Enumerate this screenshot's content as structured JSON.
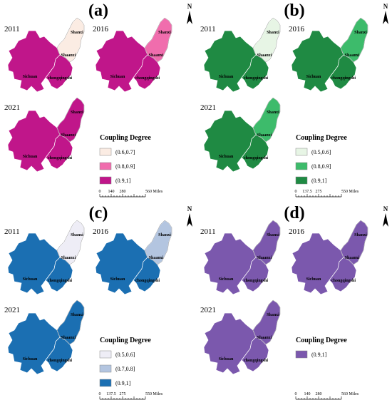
{
  "panels": [
    {
      "letter": "(a)",
      "maps": [
        {
          "year": "2011",
          "fills": [
            "#c0168a",
            "#c0168a",
            "#fbece3"
          ]
        },
        {
          "year": "2016",
          "fills": [
            "#c0168a",
            "#c0168a",
            "#f06dad"
          ]
        },
        {
          "year": "2021",
          "fills": [
            "#c0168a",
            "#c0168a",
            "#c0168a"
          ]
        }
      ],
      "legend": {
        "title": "Coupling Degree",
        "items": [
          {
            "label": "(0.6,0.7]",
            "color": "#fbece3"
          },
          {
            "label": "(0.8,0.9]",
            "color": "#f06dad"
          },
          {
            "label": "(0.9,1]",
            "color": "#c0168a"
          }
        ]
      },
      "scale": {
        "ticks": [
          "0",
          "140",
          "280",
          "560"
        ],
        "unit": "Miles"
      }
    },
    {
      "letter": "(b)",
      "maps": [
        {
          "year": "2011",
          "fills": [
            "#1f8a43",
            "#1f8a43",
            "#e7f5e5"
          ]
        },
        {
          "year": "2016",
          "fills": [
            "#1f8a43",
            "#1f8a43",
            "#3dbb6b"
          ]
        },
        {
          "year": "2021",
          "fills": [
            "#1f8a43",
            "#1f8a43",
            "#3dbb6b"
          ]
        }
      ],
      "legend": {
        "title": "Coupling Degree",
        "items": [
          {
            "label": "(0.5,0.6]",
            "color": "#e7f5e5"
          },
          {
            "label": "(0.8,0.9]",
            "color": "#3dbb6b"
          },
          {
            "label": "(0.9,1]",
            "color": "#1f8a43"
          }
        ]
      },
      "scale": {
        "ticks": [
          "0",
          "137.5",
          "275",
          "550"
        ],
        "unit": "Miles"
      }
    },
    {
      "letter": "(c)",
      "maps": [
        {
          "year": "2011",
          "fills": [
            "#1b6fb2",
            "#1b6fb2",
            "#eeedf6"
          ]
        },
        {
          "year": "2016",
          "fills": [
            "#1b6fb2",
            "#1b6fb2",
            "#b3c5e0"
          ]
        },
        {
          "year": "2021",
          "fills": [
            "#1b6fb2",
            "#1b6fb2",
            "#1b6fb2"
          ]
        }
      ],
      "legend": {
        "title": "Coupling Degree",
        "items": [
          {
            "label": "(0.5,0.6]",
            "color": "#eeedf6"
          },
          {
            "label": "(0.7,0.8]",
            "color": "#b3c5e0"
          },
          {
            "label": "(0.9,1]",
            "color": "#1b6fb2"
          }
        ]
      },
      "scale": {
        "ticks": [
          "0",
          "137.5",
          "275",
          "550"
        ],
        "unit": "Miles"
      }
    },
    {
      "letter": "(d)",
      "maps": [
        {
          "year": "2011",
          "fills": [
            "#7b58ad",
            "#7b58ad",
            "#7b58ad"
          ]
        },
        {
          "year": "2016",
          "fills": [
            "#7b58ad",
            "#7b58ad",
            "#7b58ad"
          ]
        },
        {
          "year": "2021",
          "fills": [
            "#7b58ad",
            "#7b58ad",
            "#7b58ad"
          ]
        }
      ],
      "legend": {
        "title": "Coupling Degree",
        "items": [
          {
            "label": "(0.9,1]",
            "color": "#7b58ad"
          }
        ]
      },
      "scale": {
        "ticks": [
          "0",
          "140",
          "280",
          "560"
        ],
        "unit": "Miles"
      }
    }
  ],
  "province_labels": {
    "sichuan": "Sichuan",
    "chongqing": "chongqingshi",
    "shaanxi_south": "Shaanxi",
    "shaanxi_north": "Shanxi"
  },
  "north_arrow": "N"
}
